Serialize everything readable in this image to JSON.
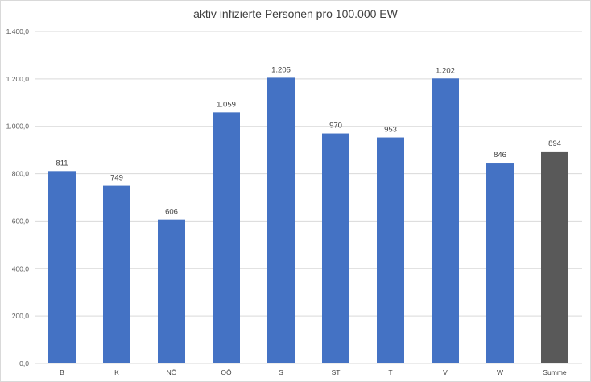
{
  "chart_data": {
    "type": "bar",
    "title": "aktiv infizierte Personen pro 100.000 EW",
    "xlabel": "",
    "ylabel": "",
    "categories": [
      "B",
      "K",
      "NÖ",
      "OÖ",
      "S",
      "ST",
      "T",
      "V",
      "W",
      "Summe"
    ],
    "values": [
      811,
      749,
      606,
      1059,
      1205,
      970,
      953,
      1202,
      846,
      894
    ],
    "value_labels": [
      "811",
      "749",
      "606",
      "1.059",
      "1.205",
      "970",
      "953",
      "1.202",
      "846",
      "894"
    ],
    "ylim": [
      0,
      1400
    ],
    "yticks": [
      0,
      200,
      400,
      600,
      800,
      1000,
      1200,
      1400
    ],
    "ytick_labels": [
      "0,0",
      "200,0",
      "400,0",
      "600,0",
      "800,0",
      "1.000,0",
      "1.200,0",
      "1.400,0"
    ],
    "grid": true,
    "legend": "none",
    "colors": {
      "bar": "#4472c4",
      "total_bar": "#595959",
      "gridline": "#d9d9d9"
    }
  }
}
